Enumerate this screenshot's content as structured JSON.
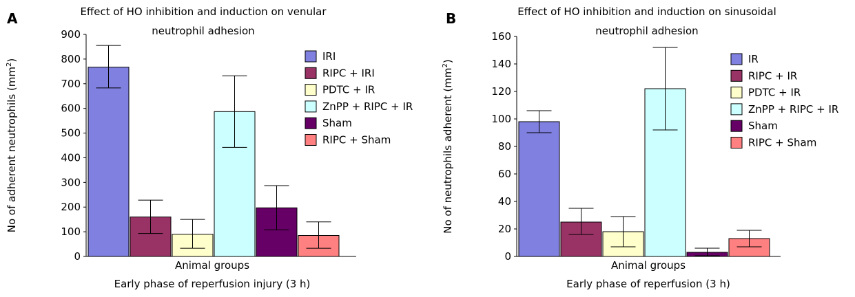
{
  "chart_data": [
    {
      "type": "bar",
      "panel_label": "A",
      "title": [
        "Effect of HO inhibition and induction on venular",
        "neutrophil adhesion"
      ],
      "xlabel": "Animal groups",
      "subtitle": "Early phase of reperfusion injury (3 h)",
      "ylabel": "No of adherent neutrophils (mm",
      "ylabel_sup": "2",
      "ylabel_end": ")",
      "ylim": [
        0,
        900
      ],
      "yticks": [
        0,
        100,
        200,
        300,
        400,
        500,
        600,
        700,
        800,
        900
      ],
      "legend_position": "right",
      "series": [
        {
          "name": "IRI",
          "value": 767,
          "err_low": 683,
          "err_high": 855,
          "color": "#8080E0"
        },
        {
          "name": "RIPC + IRI",
          "value": 160,
          "err_low": 93,
          "err_high": 228,
          "color": "#993366"
        },
        {
          "name": "PDTC + IR",
          "value": 90,
          "err_low": 33,
          "err_high": 150,
          "color": "#FFFFCC"
        },
        {
          "name": "ZnPP + RIPC + IR",
          "value": 587,
          "err_low": 442,
          "err_high": 732,
          "color": "#CCFFFF"
        },
        {
          "name": "Sham",
          "value": 197,
          "err_low": 108,
          "err_high": 287,
          "color": "#660066"
        },
        {
          "name": "RIPC + Sham",
          "value": 85,
          "err_low": 33,
          "err_high": 140,
          "color": "#FF8080"
        }
      ]
    },
    {
      "type": "bar",
      "panel_label": "B",
      "title": [
        "Effect of HO inhibition and induction on sinusoidal",
        "neutrophil adhesion"
      ],
      "xlabel": "Animal groups",
      "subtitle": "Early phase of reperfusion (3 h)",
      "ylabel": "No of neutrophils adherent (mm",
      "ylabel_sup": "2",
      "ylabel_end": ")",
      "ylim": [
        0,
        160
      ],
      "yticks": [
        0,
        20,
        40,
        60,
        80,
        100,
        120,
        140,
        160
      ],
      "legend_position": "right",
      "series": [
        {
          "name": "IR",
          "value": 98,
          "err_low": 90,
          "err_high": 106,
          "color": "#8080E0"
        },
        {
          "name": "RIPC + IR",
          "value": 25,
          "err_low": 16,
          "err_high": 35,
          "color": "#993366"
        },
        {
          "name": "PDTC + IR",
          "value": 18,
          "err_low": 7,
          "err_high": 29,
          "color": "#FFFFCC"
        },
        {
          "name": "ZnPP + RIPC + IR",
          "value": 122,
          "err_low": 92,
          "err_high": 152,
          "color": "#CCFFFF"
        },
        {
          "name": "Sham",
          "value": 3,
          "err_low": 0.5,
          "err_high": 6,
          "color": "#660066"
        },
        {
          "name": "RIPC + Sham",
          "value": 13,
          "err_low": 7,
          "err_high": 19,
          "color": "#FF8080"
        }
      ]
    }
  ]
}
